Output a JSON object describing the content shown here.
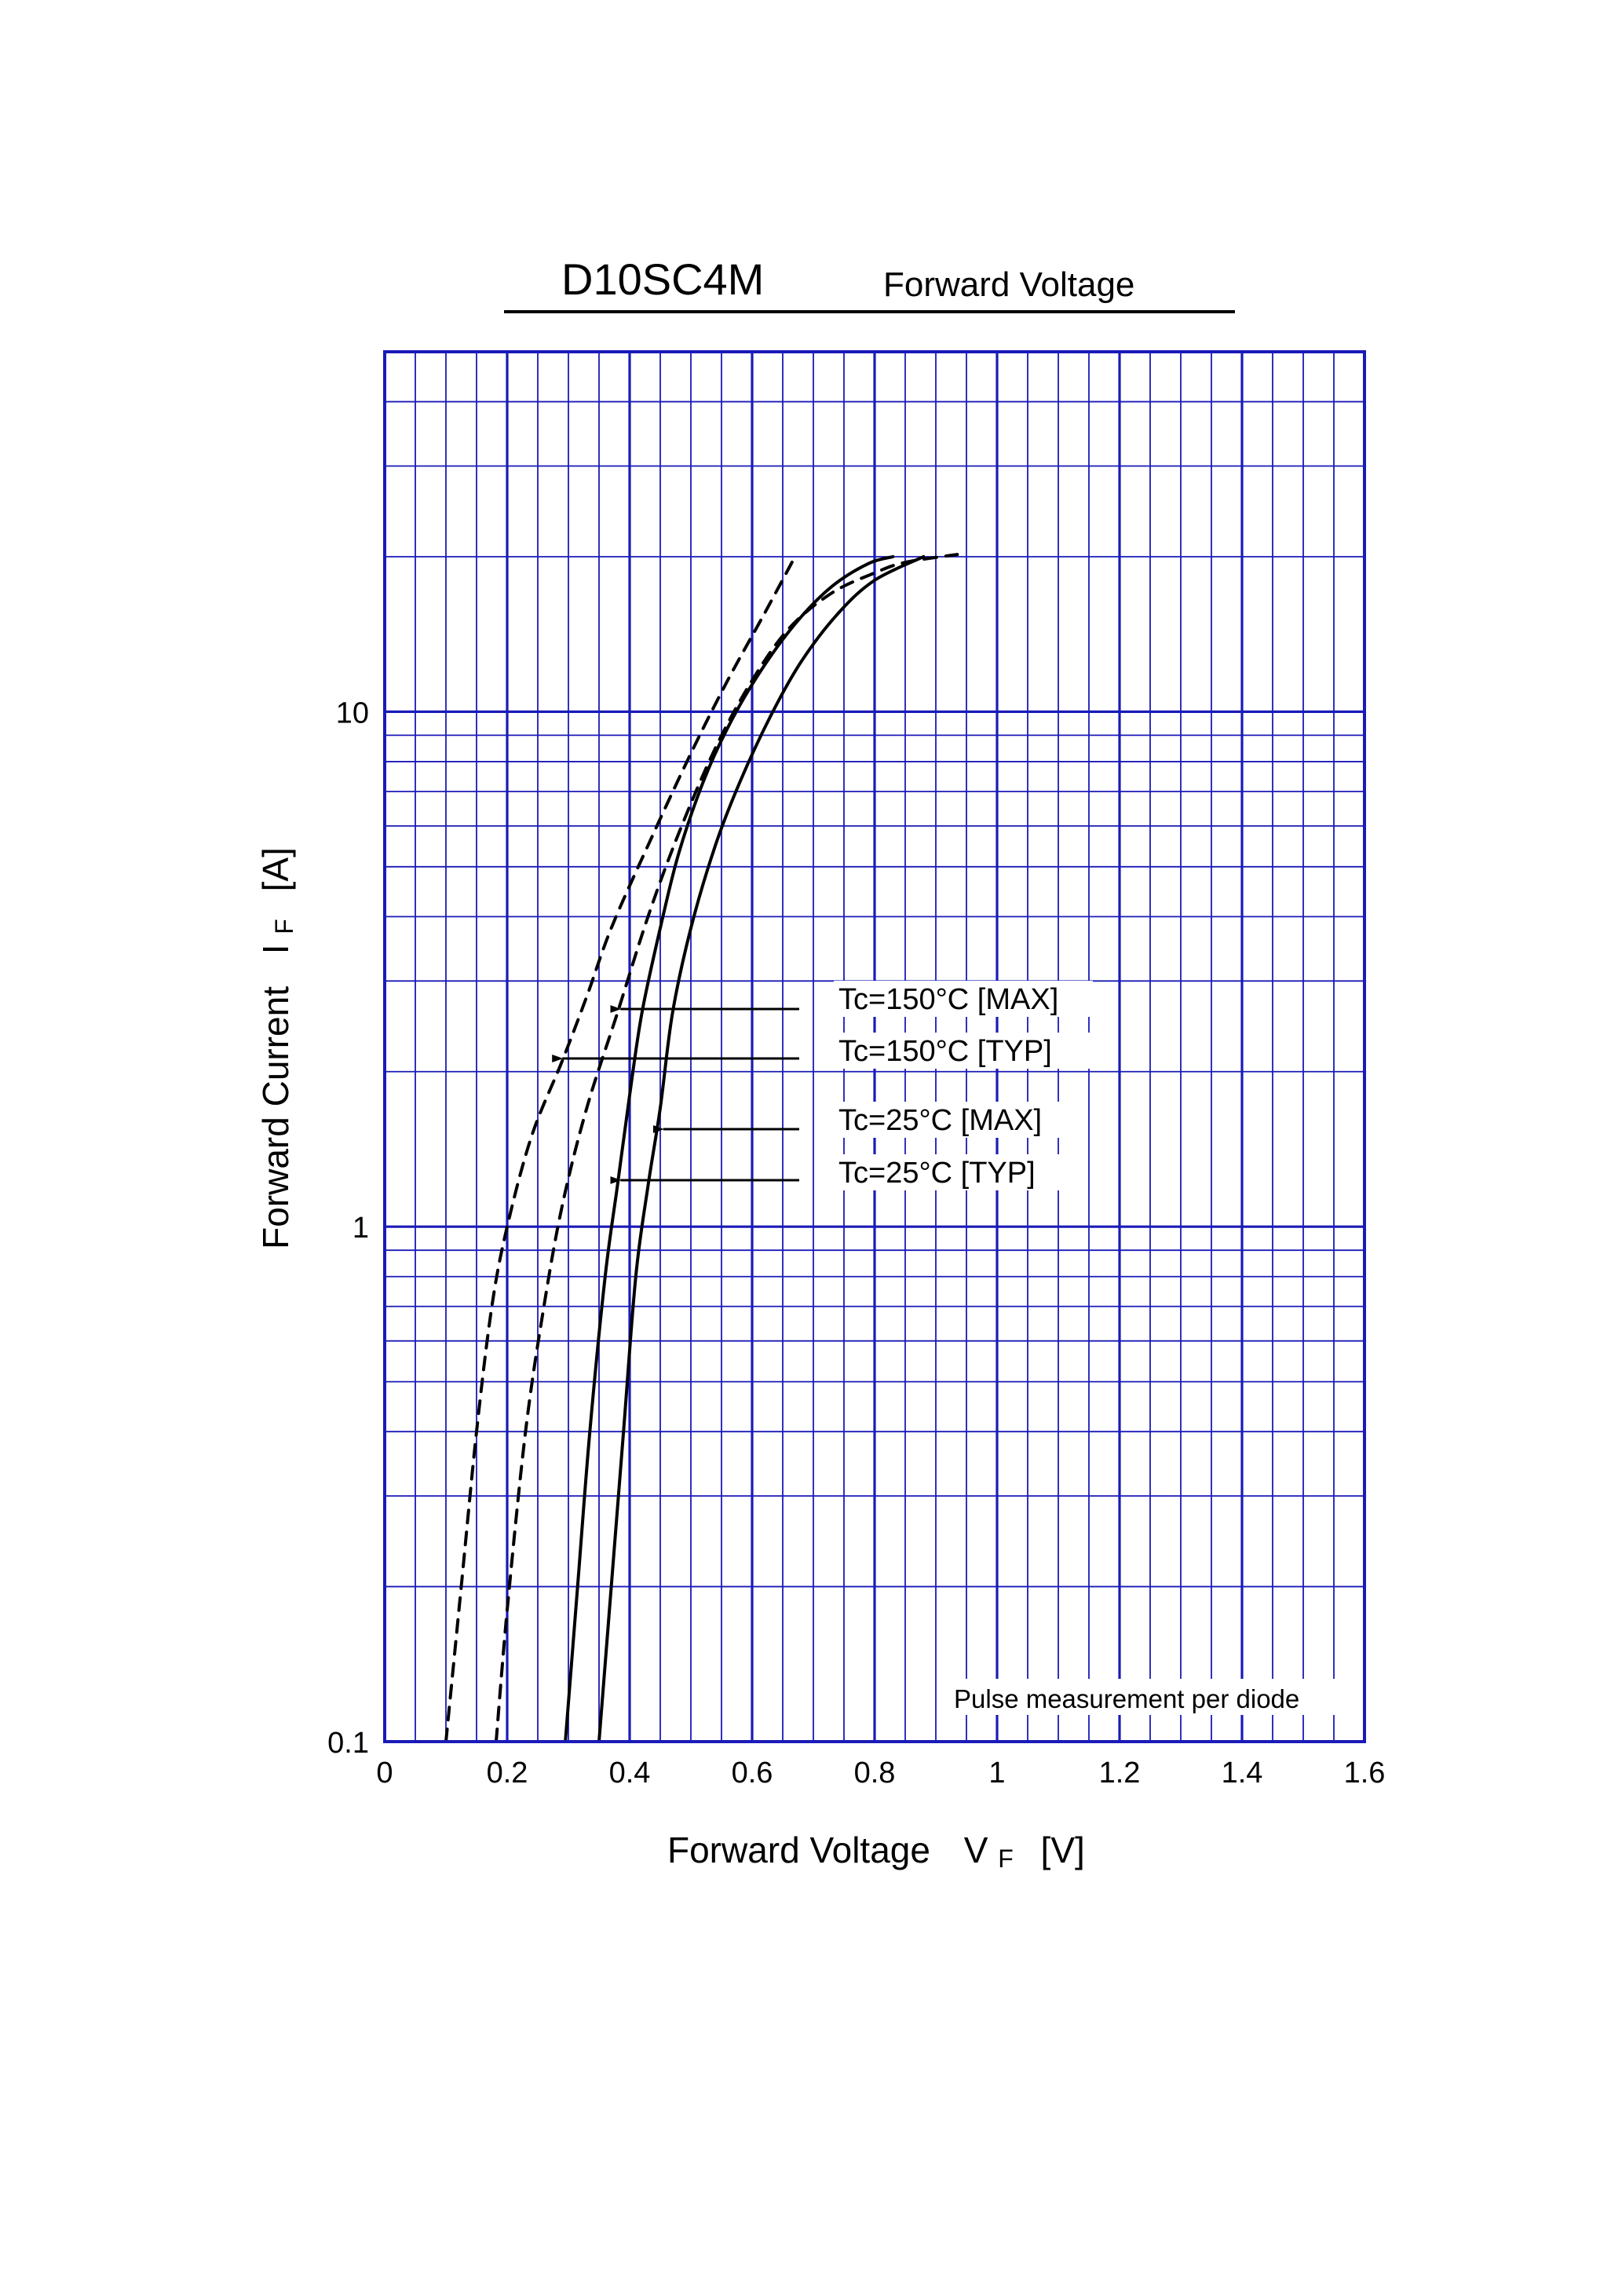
{
  "header": {
    "part_number": "D10SC4M",
    "subtitle": "Forward Voltage"
  },
  "colors": {
    "grid": "#1a1ab8",
    "curve": "#000000",
    "background": "#ffffff"
  },
  "chart_data": {
    "type": "line",
    "title": "D10SC4M",
    "subtitle": "Forward Voltage",
    "xlabel": "Forward Voltage",
    "xlabel_symbol": "V",
    "xlabel_subscript": "F",
    "xlabel_unit": "[V]",
    "ylabel": "Forward Current",
    "ylabel_symbol": "I",
    "ylabel_subscript": "F",
    "ylabel_unit": "[A]",
    "xlim": [
      0,
      1.6
    ],
    "ylim": [
      0.1,
      50
    ],
    "yscale": "log",
    "x_ticks": [
      "0",
      "0.2",
      "0.4",
      "0.6",
      "0.8",
      "1",
      "1.2",
      "1.4",
      "1.6"
    ],
    "y_ticks": [
      "0.1",
      "1",
      "10"
    ],
    "grid": true,
    "note": "Pulse measurement per diode",
    "series": [
      {
        "name": "Tc=150°C [MAX]",
        "style": "dashed",
        "points": [
          [
            0.182,
            0.1
          ],
          [
            0.2,
            0.18
          ],
          [
            0.23,
            0.4
          ],
          [
            0.26,
            0.7
          ],
          [
            0.29,
            1.1
          ],
          [
            0.33,
            1.7
          ],
          [
            0.38,
            2.6
          ],
          [
            0.43,
            4.0
          ],
          [
            0.48,
            5.8
          ],
          [
            0.54,
            8.5
          ],
          [
            0.6,
            11.5
          ],
          [
            0.66,
            14.5
          ],
          [
            0.73,
            17.0
          ],
          [
            0.8,
            18.6
          ],
          [
            0.85,
            19.5
          ],
          [
            0.935,
            20.2
          ]
        ]
      },
      {
        "name": "Tc=150°C [TYP]",
        "style": "dashed",
        "points": [
          [
            0.1,
            0.1
          ],
          [
            0.125,
            0.2
          ],
          [
            0.15,
            0.4
          ],
          [
            0.175,
            0.7
          ],
          [
            0.2,
            1.0
          ],
          [
            0.24,
            1.5
          ],
          [
            0.29,
            2.1
          ],
          [
            0.33,
            2.8
          ],
          [
            0.37,
            3.8
          ],
          [
            0.43,
            5.5
          ],
          [
            0.5,
            8.3
          ],
          [
            0.56,
            11.5
          ],
          [
            0.62,
            15.5
          ],
          [
            0.67,
            20.0
          ]
        ]
      },
      {
        "name": "Tc=25°C [MAX]",
        "style": "solid",
        "points": [
          [
            0.35,
            0.1
          ],
          [
            0.37,
            0.2
          ],
          [
            0.39,
            0.4
          ],
          [
            0.41,
            0.8
          ],
          [
            0.43,
            1.2
          ],
          [
            0.45,
            1.7
          ],
          [
            0.47,
            2.6
          ],
          [
            0.5,
            3.8
          ],
          [
            0.54,
            5.5
          ],
          [
            0.58,
            7.3
          ],
          [
            0.63,
            9.8
          ],
          [
            0.68,
            12.5
          ],
          [
            0.74,
            15.5
          ],
          [
            0.8,
            18.0
          ],
          [
            0.88,
            20.0
          ]
        ]
      },
      {
        "name": "Tc=25°C [TYP]",
        "style": "solid",
        "points": [
          [
            0.295,
            0.1
          ],
          [
            0.315,
            0.2
          ],
          [
            0.335,
            0.4
          ],
          [
            0.36,
            0.8
          ],
          [
            0.38,
            1.2
          ],
          [
            0.4,
            1.8
          ],
          [
            0.42,
            2.6
          ],
          [
            0.45,
            3.8
          ],
          [
            0.48,
            5.3
          ],
          [
            0.52,
            7.3
          ],
          [
            0.56,
            9.3
          ],
          [
            0.61,
            11.8
          ],
          [
            0.67,
            14.8
          ],
          [
            0.73,
            17.5
          ],
          [
            0.79,
            19.4
          ],
          [
            0.83,
            20.0
          ]
        ]
      }
    ],
    "legend": [
      {
        "label": "Tc=150°C [MAX]",
        "target": [
          0.385,
          2.75
        ]
      },
      {
        "label": "Tc=150°C [TYP]",
        "target": [
          0.29,
          2.2
        ]
      },
      {
        "label": "Tc=25°C [MAX]",
        "target": [
          0.455,
          1.6
        ]
      },
      {
        "label": "Tc=25°C [TYP]",
        "target": [
          0.385,
          1.25
        ]
      }
    ]
  }
}
